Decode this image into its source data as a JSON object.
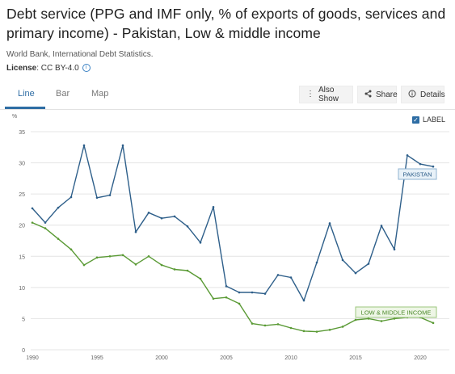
{
  "header": {
    "title": "Debt service (PPG and IMF only, % of exports of goods, services and primary income) - Pakistan, Low & middle income",
    "source": "World Bank, International Debt Statistics.",
    "license_label": "License",
    "license_value": ": CC BY-4.0"
  },
  "tabs": [
    {
      "label": "Line",
      "active": true
    },
    {
      "label": "Bar",
      "active": false
    },
    {
      "label": "Map",
      "active": false
    }
  ],
  "toolbar": {
    "also_show_label": "Also Show",
    "share_label": "Share",
    "details_label": "Details"
  },
  "label_toggle": {
    "label": "LABEL",
    "checked": true
  },
  "colors": {
    "pakistan": "#2e5f8a",
    "lmi": "#5a9a35",
    "accent": "#2e6da4"
  },
  "chart_data": {
    "type": "line",
    "ylabel": "%",
    "ylim": [
      0,
      35
    ],
    "yticks": [
      0,
      5,
      10,
      15,
      20,
      25,
      30,
      35
    ],
    "xlim": [
      1990,
      2021
    ],
    "xticks": [
      1990,
      1995,
      2000,
      2005,
      2010,
      2015,
      2020
    ],
    "grid": true,
    "x": [
      1990,
      1991,
      1992,
      1993,
      1994,
      1995,
      1996,
      1997,
      1998,
      1999,
      2000,
      2001,
      2002,
      2003,
      2004,
      2005,
      2006,
      2007,
      2008,
      2009,
      2010,
      2011,
      2012,
      2013,
      2014,
      2015,
      2016,
      2017,
      2018,
      2019,
      2020,
      2021
    ],
    "series": [
      {
        "name": "PAKISTAN",
        "values": [
          22.7,
          20.4,
          22.8,
          24.5,
          32.8,
          24.4,
          24.8,
          32.8,
          18.9,
          22.0,
          21.1,
          21.4,
          19.8,
          17.2,
          22.9,
          10.2,
          9.2,
          9.2,
          9.0,
          12.0,
          11.6,
          7.9,
          14.0,
          20.3,
          14.4,
          12.3,
          13.8,
          19.9,
          16.1,
          31.2,
          29.8,
          29.4
        ]
      },
      {
        "name": "LOW & MIDDLE INCOME",
        "values": [
          20.4,
          19.5,
          17.8,
          16.1,
          13.6,
          14.8,
          15.0,
          15.2,
          13.7,
          15.0,
          13.6,
          12.9,
          12.7,
          11.4,
          8.2,
          8.4,
          7.4,
          4.2,
          3.9,
          4.1,
          3.5,
          3.0,
          2.9,
          3.2,
          3.7,
          4.8,
          5.0,
          4.6,
          5.0,
          5.2,
          5.2,
          4.3
        ]
      }
    ]
  }
}
